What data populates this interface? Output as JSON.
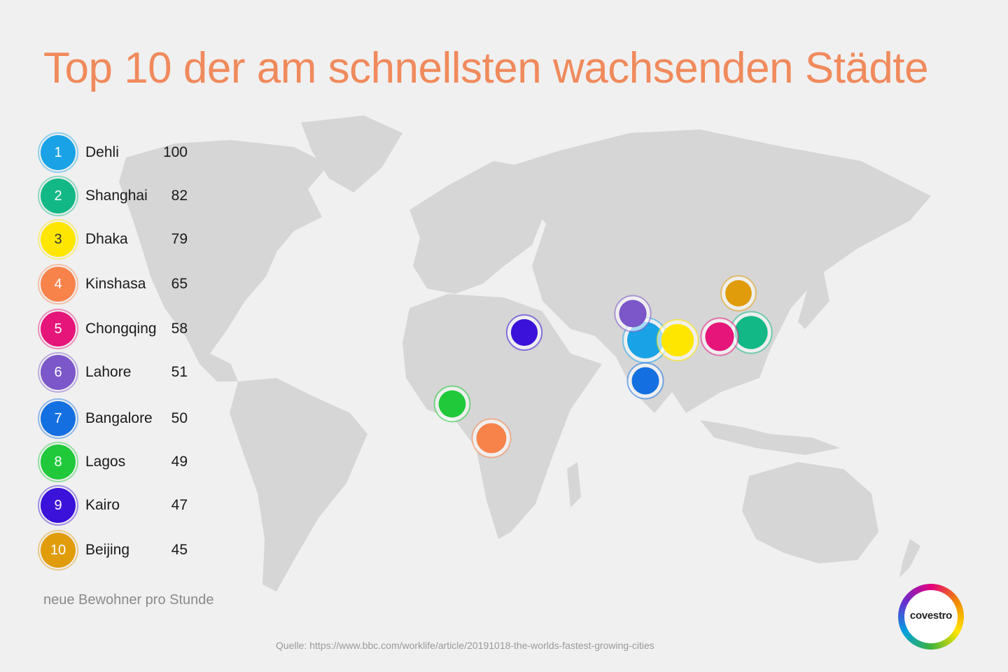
{
  "title": "Top 10 der am schnellsten wachsenden Städte",
  "legend": [
    {
      "rank": "1",
      "city": "Dehli",
      "value": "100",
      "color": "#19a3e6"
    },
    {
      "rank": "2",
      "city": "Shanghai",
      "value": "82",
      "color": "#12b886"
    },
    {
      "rank": "3",
      "city": "Dhaka",
      "value": "79",
      "color": "#ffe600"
    },
    {
      "rank": "4",
      "city": "Kinshasa",
      "value": "65",
      "color": "#f7834b"
    },
    {
      "rank": "5",
      "city": "Chongqing",
      "value": "58",
      "color": "#e6157a"
    },
    {
      "rank": "6",
      "city": "Lahore",
      "value": "51",
      "color": "#7b57c9"
    },
    {
      "rank": "7",
      "city": "Bangalore",
      "value": "50",
      "color": "#1470e0"
    },
    {
      "rank": "8",
      "city": "Lagos",
      "value": "49",
      "color": "#1fc93a"
    },
    {
      "rank": "9",
      "city": "Kairo",
      "value": "47",
      "color": "#3b12d9"
    },
    {
      "rank": "10",
      "city": "Beijing",
      "value": "45",
      "color": "#e09c0a"
    }
  ],
  "unit_note": "neue Bewohner pro Stunde",
  "source": "Quelle: https://www.bbc.com/worklife/article/20191018-the-worlds-fastest-growing-cities",
  "brand": {
    "name": "covestro"
  },
  "colors": {
    "title": "#f08a5c",
    "land": "#d4d4d4",
    "background": "#f0f0f0"
  }
}
